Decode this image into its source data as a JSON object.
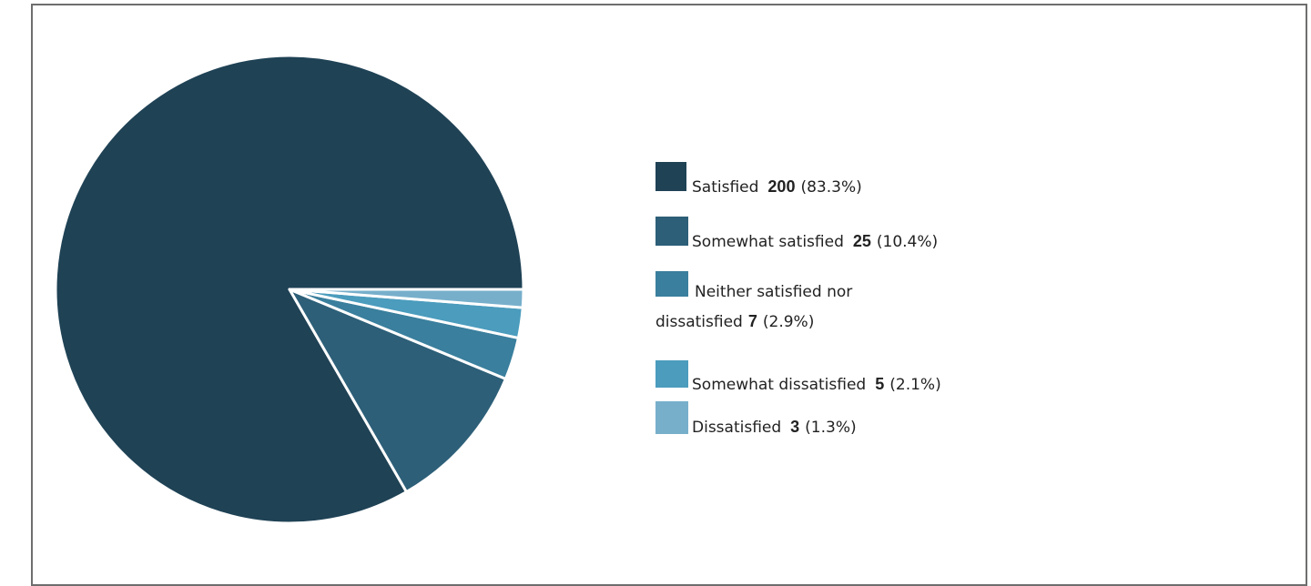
{
  "chart_data": {
    "type": "pie",
    "title": "",
    "legend_position": "right",
    "slices": [
      {
        "label": "Satisfied",
        "value": 200,
        "percent": "(83.3%)",
        "color": "#1f4255"
      },
      {
        "label": "Somewhat satisfied",
        "value": 25,
        "percent": "(10.4%)",
        "color": "#2d5f78"
      },
      {
        "label": "Neither satisfied nor dissatisfied",
        "label_line1": "Neither satisfied nor",
        "label_line2": "dissatisfied",
        "value": 7,
        "percent": "(2.9%)",
        "color": "#3a7f9d"
      },
      {
        "label": "Somewhat dissatisfied",
        "value": 5,
        "percent": "(2.1%)",
        "color": "#4b9cbd"
      },
      {
        "label": "Dissatisfied",
        "value": 3,
        "percent": "(1.3%)",
        "color": "#77afcb"
      }
    ]
  }
}
